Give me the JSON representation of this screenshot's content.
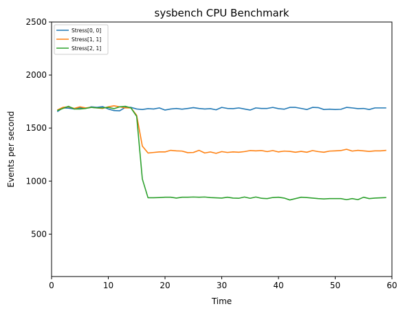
{
  "chart_data": {
    "type": "line",
    "title": "sysbench CPU Benchmark",
    "xlabel": "Time",
    "ylabel": "Events per second",
    "xlim": [
      0,
      60
    ],
    "ylim": [
      100,
      2500
    ],
    "xticks": [
      0,
      10,
      20,
      30,
      40,
      50,
      60
    ],
    "yticks": [
      500,
      1000,
      1500,
      2000,
      2500
    ],
    "grid": false,
    "legend_position": "top-left",
    "x": [
      1,
      2,
      3,
      4,
      5,
      6,
      7,
      8,
      9,
      10,
      11,
      12,
      13,
      14,
      15,
      16,
      17,
      18,
      19,
      20,
      21,
      22,
      23,
      24,
      25,
      26,
      27,
      28,
      29,
      30,
      31,
      32,
      33,
      34,
      35,
      36,
      37,
      38,
      39,
      40,
      41,
      42,
      43,
      44,
      45,
      46,
      47,
      48,
      49,
      50,
      51,
      52,
      53,
      54,
      55,
      56,
      57,
      58,
      59
    ],
    "series": [
      {
        "name": "Stress[0, 0]",
        "color": "#1f77b4",
        "values": [
          1655,
          1690,
          1688,
          1680,
          1692,
          1685,
          1700,
          1695,
          1702,
          1680,
          1665,
          1663,
          1695,
          1695,
          1680,
          1675,
          1683,
          1680,
          1690,
          1670,
          1680,
          1685,
          1678,
          1685,
          1693,
          1685,
          1680,
          1683,
          1672,
          1695,
          1685,
          1683,
          1690,
          1680,
          1670,
          1690,
          1685,
          1685,
          1695,
          1683,
          1678,
          1695,
          1695,
          1685,
          1675,
          1695,
          1693,
          1675,
          1678,
          1675,
          1677,
          1695,
          1690,
          1683,
          1685,
          1675,
          1690,
          1690,
          1690
        ]
      },
      {
        "name": "Stress[1, 1]",
        "color": "#ff7f0e",
        "values": [
          1670,
          1695,
          1700,
          1685,
          1700,
          1690,
          1695,
          1690,
          1685,
          1700,
          1710,
          1700,
          1690,
          1690,
          1620,
          1330,
          1265,
          1270,
          1275,
          1275,
          1290,
          1285,
          1283,
          1268,
          1270,
          1290,
          1265,
          1275,
          1262,
          1278,
          1270,
          1275,
          1272,
          1278,
          1288,
          1285,
          1288,
          1278,
          1288,
          1275,
          1283,
          1280,
          1272,
          1280,
          1272,
          1288,
          1278,
          1272,
          1283,
          1285,
          1288,
          1300,
          1283,
          1290,
          1285,
          1280,
          1285,
          1285,
          1290
        ]
      },
      {
        "name": "Stress[2, 1]",
        "color": "#2ca02c",
        "values": [
          1665,
          1685,
          1705,
          1680,
          1680,
          1685,
          1695,
          1690,
          1690,
          1695,
          1683,
          1700,
          1705,
          1690,
          1610,
          1020,
          843,
          843,
          845,
          848,
          848,
          840,
          848,
          848,
          850,
          848,
          850,
          845,
          842,
          840,
          848,
          840,
          838,
          850,
          838,
          850,
          838,
          835,
          845,
          848,
          840,
          822,
          835,
          848,
          845,
          840,
          835,
          832,
          835,
          835,
          835,
          825,
          835,
          825,
          848,
          835,
          840,
          842,
          845
        ]
      }
    ]
  }
}
